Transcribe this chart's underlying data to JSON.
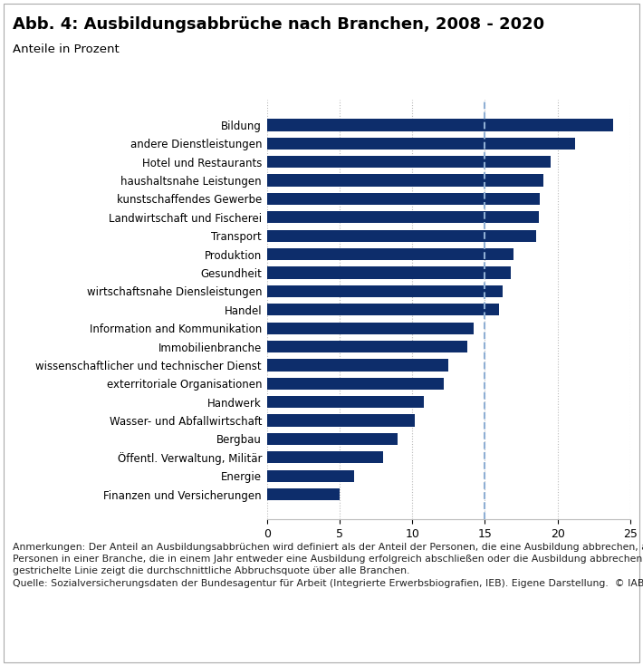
{
  "title": "Abb. 4: Ausbildungsabbrüche nach Branchen, 2008 - 2020",
  "subtitle": "Anteile in Prozent",
  "bar_color": "#0d2d6b",
  "average_line": 15,
  "average_line_color": "#8fafd4",
  "xlim": [
    0,
    25
  ],
  "xticks": [
    0,
    5,
    10,
    15,
    20,
    25
  ],
  "categories": [
    "Bildung",
    "andere Dienstleistungen",
    "Hotel und Restaurants",
    "haushaltsnahe Leistungen",
    "kunstschaffendes Gewerbe",
    "Landwirtschaft und Fischerei",
    "Transport",
    "Produktion",
    "Gesundheit",
    "wirtschaftsnahe Diensleistungen",
    "Handel",
    "Information and Kommunikation",
    "Immobilienbranche",
    "wissenschaftlicher und technischer Dienst",
    "exterritoriale Organisationen",
    "Handwerk",
    "Wasser- und Abfallwirtschaft",
    "Bergbau",
    "Öffentl. Verwaltung, Militär",
    "Energie",
    "Finanzen und Versicherungen"
  ],
  "values": [
    23.8,
    21.2,
    19.5,
    19.0,
    18.8,
    18.7,
    18.5,
    17.0,
    16.8,
    16.2,
    16.0,
    14.2,
    13.8,
    12.5,
    12.2,
    10.8,
    10.2,
    9,
    8,
    6,
    5
  ],
  "footnote_text": "Anmerkungen: Der Anteil an Ausbildungsabbrüchen wird definiert als der Anteil der Personen, die eine Ausbildung abbrechen, an allen\nPersonen in einer Branche, die in einem Jahr entweder eine Ausbildung erfolgreich abschließen oder die Ausbildung abbrechen. Die\ngestrichelte Linie zeigt die durchschnittliche Abbruchsquote über alle Branchen.\nQuelle: Sozialversicherungsdaten der Bundesagentur für Arbeit (Integrierte Erwerbsbiografien, IEB). Eigene Darstellung.  © IAB",
  "background_color": "#ffffff",
  "grid_color": "#bbbbbb",
  "title_fontsize": 13,
  "subtitle_fontsize": 9.5,
  "label_fontsize": 8.5,
  "tick_fontsize": 9,
  "footnote_fontsize": 7.8
}
